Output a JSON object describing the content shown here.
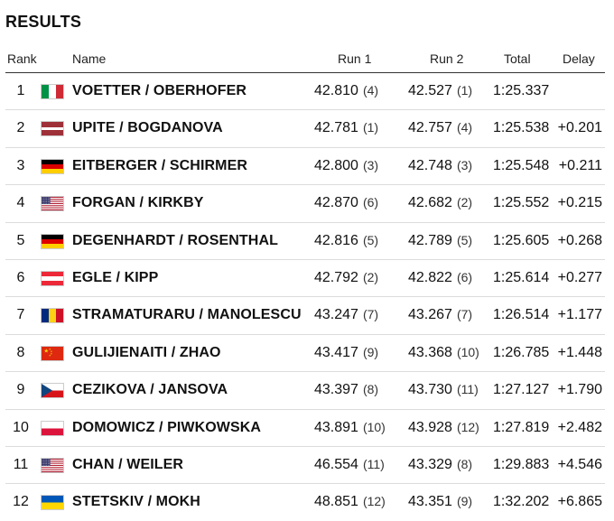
{
  "title": "RESULTS",
  "headers": {
    "rank": "Rank",
    "name": "Name",
    "run1": "Run 1",
    "run2": "Run 2",
    "total": "Total",
    "delay": "Delay"
  },
  "rows": [
    {
      "rank": "1",
      "flag": "flag-italy-icon",
      "name": "VOETTER / OBERHOFER",
      "run1": "42.810",
      "run1_rank": "(4)",
      "run2": "42.527",
      "run2_rank": "(1)",
      "total": "1:25.337",
      "delay": ""
    },
    {
      "rank": "2",
      "flag": "flag-latvia-icon",
      "name": "UPITE / BOGDANOVA",
      "run1": "42.781",
      "run1_rank": "(1)",
      "run2": "42.757",
      "run2_rank": "(4)",
      "total": "1:25.538",
      "delay": "+0.201"
    },
    {
      "rank": "3",
      "flag": "flag-germany-icon",
      "name": "EITBERGER / SCHIRMER",
      "run1": "42.800",
      "run1_rank": "(3)",
      "run2": "42.748",
      "run2_rank": "(3)",
      "total": "1:25.548",
      "delay": "+0.211"
    },
    {
      "rank": "4",
      "flag": "flag-usa-icon",
      "name": "FORGAN / KIRKBY",
      "run1": "42.870",
      "run1_rank": "(6)",
      "run2": "42.682",
      "run2_rank": "(2)",
      "total": "1:25.552",
      "delay": "+0.215"
    },
    {
      "rank": "5",
      "flag": "flag-germany-icon",
      "name": "DEGENHARDT / ROSENTHAL",
      "run1": "42.816",
      "run1_rank": "(5)",
      "run2": "42.789",
      "run2_rank": "(5)",
      "total": "1:25.605",
      "delay": "+0.268"
    },
    {
      "rank": "6",
      "flag": "flag-austria-icon",
      "name": "EGLE / KIPP",
      "run1": "42.792",
      "run1_rank": "(2)",
      "run2": "42.822",
      "run2_rank": "(6)",
      "total": "1:25.614",
      "delay": "+0.277"
    },
    {
      "rank": "7",
      "flag": "flag-romania-icon",
      "name": "STRAMATURARU / MANOLESCU",
      "run1": "43.247",
      "run1_rank": "(7)",
      "run2": "43.267",
      "run2_rank": "(7)",
      "total": "1:26.514",
      "delay": "+1.177"
    },
    {
      "rank": "8",
      "flag": "flag-china-icon",
      "name": "GULIJIENAITI / ZHAO",
      "run1": "43.417",
      "run1_rank": "(9)",
      "run2": "43.368",
      "run2_rank": "(10)",
      "total": "1:26.785",
      "delay": "+1.448"
    },
    {
      "rank": "9",
      "flag": "flag-czech-icon",
      "name": "CEZIKOVA / JANSOVA",
      "run1": "43.397",
      "run1_rank": "(8)",
      "run2": "43.730",
      "run2_rank": "(11)",
      "total": "1:27.127",
      "delay": "+1.790"
    },
    {
      "rank": "10",
      "flag": "flag-poland-icon",
      "name": "DOMOWICZ / PIWKOWSKA",
      "run1": "43.891",
      "run1_rank": "(10)",
      "run2": "43.928",
      "run2_rank": "(12)",
      "total": "1:27.819",
      "delay": "+2.482"
    },
    {
      "rank": "11",
      "flag": "flag-usa-icon",
      "name": "CHAN / WEILER",
      "run1": "46.554",
      "run1_rank": "(11)",
      "run2": "43.329",
      "run2_rank": "(8)",
      "total": "1:29.883",
      "delay": "+4.546"
    },
    {
      "rank": "12",
      "flag": "flag-ukraine-icon",
      "name": "STETSKIV / MOKH",
      "run1": "48.851",
      "run1_rank": "(12)",
      "run2": "43.351",
      "run2_rank": "(9)",
      "total": "1:32.202",
      "delay": "+6.865"
    }
  ]
}
